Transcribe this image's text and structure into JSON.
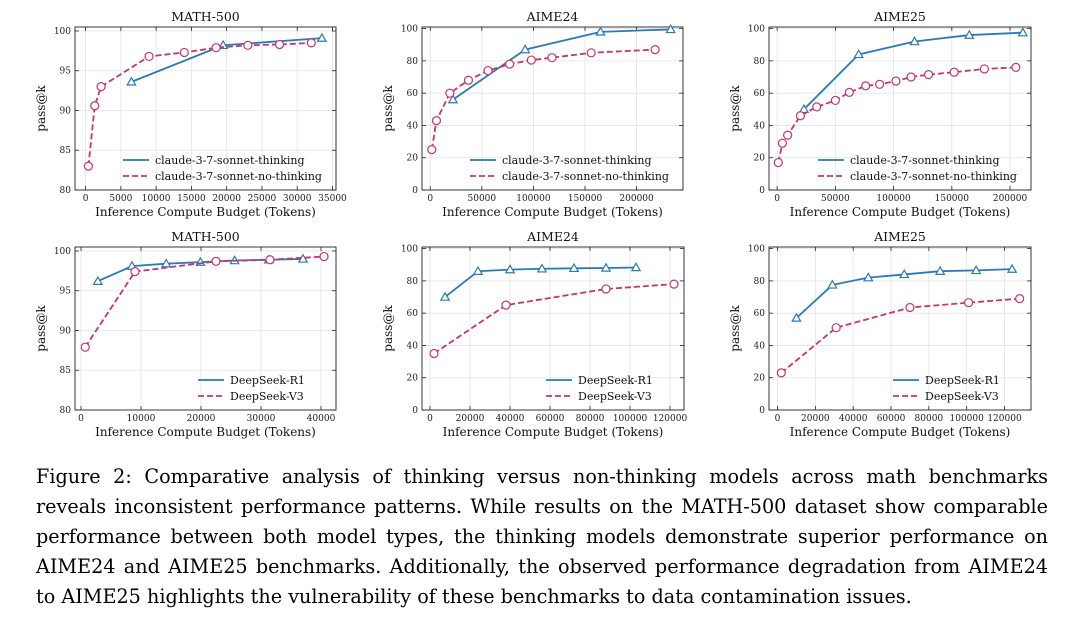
{
  "caption": "Figure 2: Comparative analysis of thinking versus non-thinking models across math benchmarks reveals inconsistent performance patterns. While results on the MATH-500 dataset show comparable performance between both model types, the thinking models demonstrate superior performance on AIME24 and AIME25 benchmarks. Additionally, the observed performance degradation from AIME24 to AIME25 highlights the vulnerability of these benchmarks to data contamination issues.",
  "colors": {
    "series_a": "#2a7ab8",
    "series_b": "#c7356c",
    "grid": "#e3e3e3"
  },
  "chart_data": [
    {
      "type": "line",
      "title": "MATH-500",
      "xlabel": "Inference Compute Budget (Tokens)",
      "ylabel": "pass@k",
      "xlim": [
        -1500,
        35500
      ],
      "ylim": [
        80,
        100.5
      ],
      "xticks": [
        0,
        5000,
        10000,
        15000,
        20000,
        25000,
        30000,
        35000
      ],
      "xtick_labels": [
        "0",
        "5000",
        "10000",
        "15000",
        "20000",
        "25000",
        "30000",
        "35000"
      ],
      "yticks": [
        80,
        85,
        90,
        95,
        100
      ],
      "ytick_labels": [
        "80",
        "85",
        "90",
        "95",
        "100"
      ],
      "legend": "lower-right",
      "series": [
        {
          "name": "claude-3-7-sonnet-thinking",
          "style": "solid",
          "marker": "triangle",
          "x": [
            6500,
            19500,
            33500
          ],
          "y": [
            93.6,
            98.2,
            99.1
          ]
        },
        {
          "name": "claude-3-7-sonnet-no-thinking",
          "style": "dashed",
          "marker": "circle",
          "x": [
            400,
            1300,
            2200,
            9000,
            14000,
            18500,
            23000,
            27500,
            32000
          ],
          "y": [
            83.0,
            90.6,
            93.0,
            96.8,
            97.3,
            97.9,
            98.2,
            98.3,
            98.5
          ]
        }
      ]
    },
    {
      "type": "line",
      "title": "AIME24",
      "xlabel": "Inference Compute Budget (Tokens)",
      "ylabel": "pass@k",
      "xlim": [
        -8000,
        245000
      ],
      "ylim": [
        0,
        101
      ],
      "xticks": [
        0,
        50000,
        100000,
        150000,
        200000
      ],
      "xtick_labels": [
        "0",
        "50000",
        "100000",
        "150000",
        "200000"
      ],
      "yticks": [
        0,
        20,
        40,
        60,
        80,
        100
      ],
      "ytick_labels": [
        "0",
        "20",
        "40",
        "60",
        "80",
        "100"
      ],
      "legend": "lower-right",
      "series": [
        {
          "name": "claude-3-7-sonnet-thinking",
          "style": "solid",
          "marker": "triangle",
          "x": [
            22000,
            92000,
            165000,
            233000
          ],
          "y": [
            56,
            87,
            98,
            99.5
          ]
        },
        {
          "name": "claude-3-7-sonnet-no-thinking",
          "style": "dashed",
          "marker": "circle",
          "x": [
            1500,
            6000,
            19000,
            37000,
            56000,
            77000,
            98000,
            118000,
            156000,
            218000
          ],
          "y": [
            25,
            43,
            60,
            68,
            74,
            78,
            80.5,
            82,
            85,
            87
          ]
        }
      ]
    },
    {
      "type": "line",
      "title": "AIME25",
      "xlabel": "Inference Compute Budget (Tokens)",
      "ylabel": "pass@k",
      "xlim": [
        -7000,
        218000
      ],
      "ylim": [
        0,
        101
      ],
      "xticks": [
        0,
        50000,
        100000,
        150000,
        200000
      ],
      "xtick_labels": [
        "0",
        "50000",
        "100000",
        "150000",
        "200000"
      ],
      "yticks": [
        0,
        20,
        40,
        60,
        80,
        100
      ],
      "ytick_labels": [
        "0",
        "20",
        "40",
        "60",
        "80",
        "100"
      ],
      "legend": "lower-right",
      "series": [
        {
          "name": "claude-3-7-sonnet-thinking",
          "style": "solid",
          "marker": "triangle",
          "x": [
            23000,
            70000,
            118000,
            165000,
            211000
          ],
          "y": [
            50,
            84,
            92,
            96,
            97.5
          ]
        },
        {
          "name": "claude-3-7-sonnet-no-thinking",
          "style": "dashed",
          "marker": "circle",
          "x": [
            1000,
            4500,
            9000,
            20000,
            34000,
            50000,
            62000,
            76000,
            88000,
            102000,
            115000,
            130000,
            152000,
            178000,
            205000
          ],
          "y": [
            17,
            29,
            34,
            46,
            51.5,
            55.5,
            60.5,
            64.5,
            65.5,
            67.5,
            70,
            71.5,
            73,
            75,
            76
          ]
        }
      ]
    },
    {
      "type": "line",
      "title": "MATH-500",
      "xlabel": "Inference Compute Budget (Tokens)",
      "ylabel": "pass@k",
      "xlim": [
        -1000,
        42500
      ],
      "ylim": [
        80,
        100.5
      ],
      "xticks": [
        0,
        10000,
        20000,
        30000,
        40000
      ],
      "xtick_labels": [
        "0",
        "10000",
        "20000",
        "30000",
        "40000"
      ],
      "yticks": [
        80,
        85,
        90,
        95,
        100
      ],
      "ytick_labels": [
        "80",
        "85",
        "90",
        "95",
        "100"
      ],
      "legend": "lower-right",
      "series": [
        {
          "name": "DeepSeek-R1",
          "style": "solid",
          "marker": "triangle",
          "x": [
            2800,
            8500,
            14200,
            19900,
            25600,
            31300,
            37000
          ],
          "y": [
            96.2,
            98.1,
            98.4,
            98.6,
            98.8,
            98.9,
            99.0
          ]
        },
        {
          "name": "DeepSeek-V3",
          "style": "dashed",
          "marker": "circle",
          "x": [
            700,
            9000,
            22500,
            31500,
            40500
          ],
          "y": [
            87.9,
            97.4,
            98.7,
            98.9,
            99.3
          ]
        }
      ]
    },
    {
      "type": "line",
      "title": "AIME24",
      "xlabel": "Inference Compute Budget (Tokens)",
      "ylabel": "pass@k",
      "xlim": [
        -4000,
        127000
      ],
      "ylim": [
        0,
        101
      ],
      "xticks": [
        0,
        20000,
        40000,
        60000,
        80000,
        100000,
        120000
      ],
      "xtick_labels": [
        "0",
        "20000",
        "40000",
        "60000",
        "80000",
        "100000",
        "120000"
      ],
      "yticks": [
        0,
        20,
        40,
        60,
        80,
        100
      ],
      "ytick_labels": [
        "0",
        "20",
        "40",
        "60",
        "80",
        "100"
      ],
      "legend": "lower-right",
      "series": [
        {
          "name": "DeepSeek-R1",
          "style": "solid",
          "marker": "triangle",
          "x": [
            7500,
            24000,
            40000,
            56000,
            72000,
            88000,
            103000
          ],
          "y": [
            70,
            86,
            87,
            87.5,
            87.8,
            88,
            88.3
          ]
        },
        {
          "name": "DeepSeek-V3",
          "style": "dashed",
          "marker": "circle",
          "x": [
            2000,
            38000,
            88000,
            122000
          ],
          "y": [
            35,
            65,
            75,
            78
          ]
        }
      ]
    },
    {
      "type": "line",
      "title": "AIME25",
      "xlabel": "Inference Compute Budget (Tokens)",
      "ylabel": "pass@k",
      "xlim": [
        -4500,
        134000
      ],
      "ylim": [
        0,
        101
      ],
      "xticks": [
        0,
        20000,
        40000,
        60000,
        80000,
        100000,
        120000
      ],
      "xtick_labels": [
        "0",
        "20000",
        "40000",
        "60000",
        "80000",
        "100000",
        "120000"
      ],
      "yticks": [
        0,
        20,
        40,
        60,
        80,
        100
      ],
      "ytick_labels": [
        "0",
        "20",
        "40",
        "60",
        "80",
        "100"
      ],
      "legend": "lower-right",
      "series": [
        {
          "name": "DeepSeek-R1",
          "style": "solid",
          "marker": "triangle",
          "x": [
            10000,
            29000,
            48000,
            67000,
            86000,
            105000,
            124000
          ],
          "y": [
            57,
            77.5,
            82,
            84,
            86,
            86.5,
            87.3
          ]
        },
        {
          "name": "DeepSeek-V3",
          "style": "dashed",
          "marker": "circle",
          "x": [
            2000,
            31000,
            70000,
            101000,
            128000
          ],
          "y": [
            23,
            51,
            63.5,
            66.5,
            69
          ]
        }
      ]
    }
  ]
}
